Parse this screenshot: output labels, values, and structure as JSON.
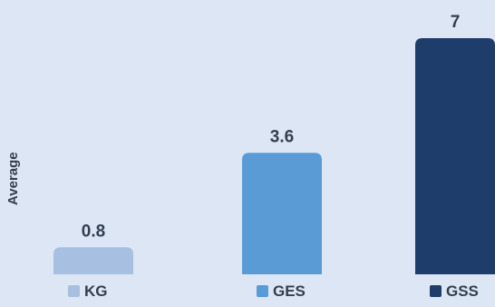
{
  "chart_data": {
    "type": "bar",
    "title": "",
    "xlabel": "",
    "ylabel": "Average",
    "categories": [
      "KG",
      "GES",
      "GSS"
    ],
    "values": [
      0.8,
      3.6,
      7
    ],
    "value_labels": [
      "0.8",
      "3.6",
      "7"
    ],
    "ylim": [
      0,
      7
    ],
    "grid": false,
    "legend_position": "bottom",
    "colors": [
      "#a7bfe0",
      "#5b9bd5",
      "#1f3d6b"
    ]
  },
  "colors": {
    "background": "#dce6f4",
    "text": "#333f50"
  }
}
